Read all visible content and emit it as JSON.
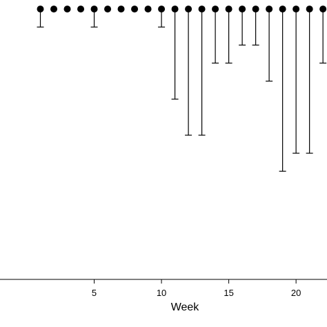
{
  "chart_data": {
    "type": "scatter",
    "title": "",
    "xlabel": "Week",
    "ylabel": "",
    "xlim": [
      -2,
      22.3
    ],
    "ylim": [
      -0.5,
      7.25
    ],
    "grid": false,
    "x_ticks": [
      5,
      10,
      15,
      20
    ],
    "x_tick_labels": [
      "5",
      "10",
      "15",
      "20"
    ],
    "series": [
      {
        "x": [
          1,
          2,
          3,
          4,
          5,
          6,
          7,
          8,
          9,
          10,
          11,
          12,
          13,
          14,
          15,
          16,
          17,
          18,
          19,
          20,
          21,
          22
        ],
        "y": [
          7,
          7,
          7,
          7,
          7,
          7,
          7,
          7,
          7,
          7,
          7,
          7,
          7,
          7,
          7,
          7,
          7,
          7,
          7,
          7,
          7,
          7
        ],
        "error_lower": [
          6.5,
          null,
          null,
          null,
          6.5,
          null,
          null,
          null,
          null,
          6.5,
          4.5,
          3.5,
          3.5,
          5.5,
          5.5,
          6.0,
          6.0,
          5.0,
          2.5,
          3.0,
          3.0,
          5.5
        ]
      }
    ]
  }
}
